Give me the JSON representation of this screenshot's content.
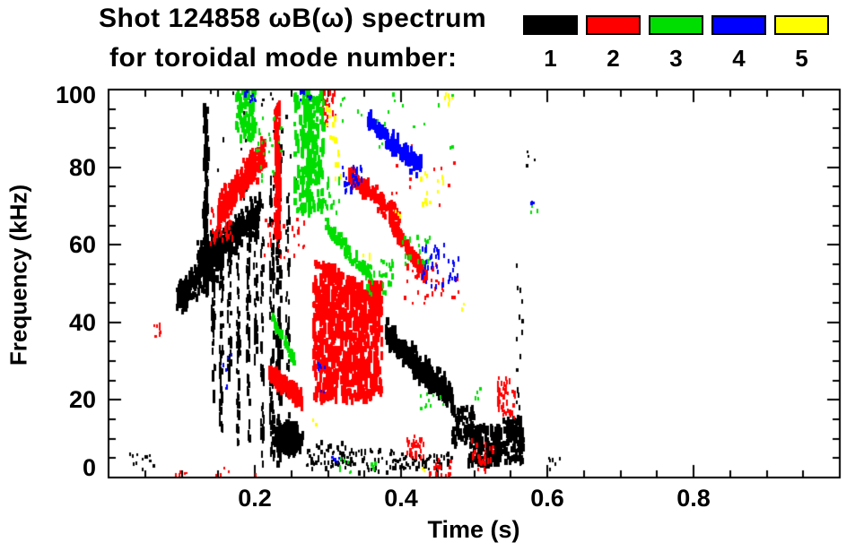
{
  "header": {
    "title_line1": "Shot 124858 ωB(ω) spectrum",
    "title_line2": "for toroidal mode number:"
  },
  "legend": {
    "items": [
      {
        "label": "1",
        "color": "#000000"
      },
      {
        "label": "2",
        "color": "#ff0000"
      },
      {
        "label": "3",
        "color": "#00dd00"
      },
      {
        "label": "4",
        "color": "#0000ff"
      },
      {
        "label": "5",
        "color": "#ffff00"
      }
    ]
  },
  "chart_data": {
    "type": "scatter",
    "title": "Shot 124858 ωB(ω) spectrum for toroidal mode number: 1-5",
    "xlabel": "Time (s)",
    "ylabel": "Frequency (kHz)",
    "xlim": [
      0,
      1.0
    ],
    "ylim": [
      0,
      100
    ],
    "grid": false,
    "legend_position": "top-right",
    "xticks": {
      "major": [
        0.2,
        0.4,
        0.6,
        0.8
      ],
      "labels": [
        "0.2",
        "0.4",
        "0.6",
        "0.8"
      ],
      "minor_step": 0.05
    },
    "yticks": {
      "major": [
        0,
        20,
        40,
        60,
        80,
        100
      ],
      "labels": [
        "0",
        "20",
        "40",
        "60",
        "80",
        "100"
      ],
      "minor_step": 5
    },
    "modes": [
      {
        "n": 1,
        "color": "#000000"
      },
      {
        "n": 2,
        "color": "#ff0000"
      },
      {
        "n": 3,
        "color": "#00dd00"
      },
      {
        "n": 4,
        "color": "#0000ff"
      },
      {
        "n": 5,
        "color": "#ffff00"
      }
    ],
    "clusters": [
      {
        "m": 1,
        "p": "box",
        "t": [
          0.028,
          0.062
        ],
        "f": [
          2,
          6
        ],
        "n": 12,
        "w": 2,
        "h": 3,
        "hv": 2
      },
      {
        "m": 1,
        "p": "band",
        "t": [
          0.092,
          0.155
        ],
        "f": [
          46,
          57
        ],
        "fs": 5,
        "n": 220,
        "w": 3,
        "h": 5,
        "hv": 5
      },
      {
        "m": 1,
        "p": "band",
        "t": [
          0.12,
          0.205
        ],
        "f": [
          56,
          68
        ],
        "fs": 5,
        "n": 330,
        "w": 3,
        "h": 5,
        "hv": 5
      },
      {
        "m": 1,
        "p": "vstreak",
        "t": [
          0.131,
          0.003
        ],
        "f": [
          48,
          97
        ],
        "n": 90,
        "w": 3,
        "h": 6,
        "hv": 6
      },
      {
        "m": 1,
        "p": "vstreak",
        "t": [
          0.142,
          0.002
        ],
        "f": [
          20,
          55
        ],
        "n": 45,
        "w": 2,
        "h": 5,
        "hv": 5
      },
      {
        "m": 1,
        "p": "vstreak",
        "t": [
          0.153,
          0.002
        ],
        "f": [
          12,
          62
        ],
        "n": 60,
        "w": 2,
        "h": 5,
        "hv": 5
      },
      {
        "m": 1,
        "p": "vstreak",
        "t": [
          0.164,
          0.002
        ],
        "f": [
          25,
          62
        ],
        "n": 45,
        "w": 2,
        "h": 5,
        "hv": 5
      },
      {
        "m": 1,
        "p": "vstreak",
        "t": [
          0.176,
          0.002
        ],
        "f": [
          8,
          66
        ],
        "n": 60,
        "w": 2,
        "h": 5,
        "hv": 5
      },
      {
        "m": 1,
        "p": "vstreak",
        "t": [
          0.19,
          0.002
        ],
        "f": [
          10,
          68
        ],
        "n": 55,
        "w": 2,
        "h": 5,
        "hv": 5
      },
      {
        "m": 1,
        "p": "vstreak",
        "t": [
          0.2,
          0.002
        ],
        "f": [
          28,
          66
        ],
        "n": 40,
        "w": 2,
        "h": 5,
        "hv": 5
      },
      {
        "m": 1,
        "p": "vstreak",
        "t": [
          0.209,
          0.002
        ],
        "f": [
          3,
          70
        ],
        "n": 50,
        "w": 2,
        "h": 5,
        "hv": 5
      },
      {
        "m": 1,
        "p": "box",
        "t": [
          0.13,
          0.26
        ],
        "f": [
          72,
          100
        ],
        "n": 30,
        "w": 2,
        "h": 3,
        "hv": 3
      },
      {
        "m": 1,
        "p": "vstreak",
        "t": [
          0.222,
          0.003
        ],
        "f": [
          4,
          80
        ],
        "n": 80,
        "w": 2,
        "h": 5,
        "hv": 6
      },
      {
        "m": 1,
        "p": "vstreak",
        "t": [
          0.231,
          0.003
        ],
        "f": [
          3,
          88
        ],
        "n": 90,
        "w": 3,
        "h": 6,
        "hv": 6
      },
      {
        "m": 1,
        "p": "vstreak",
        "t": [
          0.244,
          0.002
        ],
        "f": [
          5,
          72
        ],
        "n": 50,
        "w": 2,
        "h": 5,
        "hv": 5
      },
      {
        "m": 1,
        "p": "blob",
        "t": [
          0.243,
          0.018
        ],
        "f": [
          10,
          4
        ],
        "n": 380,
        "w": 3,
        "h": 5,
        "hv": 5
      },
      {
        "m": 1,
        "p": "box",
        "t": [
          0.27,
          0.325
        ],
        "f": [
          2,
          9
        ],
        "n": 55,
        "w": 2,
        "h": 3,
        "hv": 3
      },
      {
        "m": 1,
        "p": "box",
        "t": [
          0.325,
          0.39
        ],
        "f": [
          1,
          7
        ],
        "n": 45,
        "w": 2,
        "h": 3,
        "hv": 3
      },
      {
        "m": 1,
        "p": "band",
        "t": [
          0.378,
          0.468
        ],
        "f": [
          37,
          20
        ],
        "fs": 4,
        "n": 380,
        "w": 3,
        "h": 5,
        "hv": 5
      },
      {
        "m": 1,
        "p": "box",
        "t": [
          0.388,
          0.468
        ],
        "f": [
          2,
          6
        ],
        "n": 65,
        "w": 2,
        "h": 3,
        "hv": 3
      },
      {
        "m": 1,
        "p": "box",
        "t": [
          0.468,
          0.497
        ],
        "f": [
          8,
          18
        ],
        "n": 80,
        "w": 3,
        "h": 4,
        "hv": 4
      },
      {
        "m": 1,
        "p": "box",
        "t": [
          0.49,
          0.535
        ],
        "f": [
          3,
          13
        ],
        "n": 170,
        "w": 3,
        "h": 5,
        "hv": 4
      },
      {
        "m": 1,
        "p": "box",
        "t": [
          0.538,
          0.565
        ],
        "f": [
          4,
          15
        ],
        "n": 110,
        "w": 3,
        "h": 5,
        "hv": 4
      },
      {
        "m": 1,
        "p": "vstreak",
        "t": [
          0.561,
          0.004
        ],
        "f": [
          3,
          62
        ],
        "n": 20,
        "w": 2,
        "h": 4,
        "hv": 3
      },
      {
        "m": 1,
        "p": "box",
        "t": [
          0.6,
          0.617
        ],
        "f": [
          2,
          5
        ],
        "n": 6,
        "w": 2,
        "h": 3,
        "hv": 2
      },
      {
        "m": 1,
        "p": "box",
        "t": [
          0.57,
          0.585
        ],
        "f": [
          80,
          86
        ],
        "n": 4,
        "w": 2,
        "h": 3,
        "hv": 2
      },
      {
        "m": 2,
        "p": "band",
        "t": [
          0.148,
          0.212
        ],
        "f": [
          68,
          84
        ],
        "fs": 5,
        "n": 280,
        "w": 3,
        "h": 5,
        "hv": 5
      },
      {
        "m": 2,
        "p": "box",
        "t": [
          0.138,
          0.168
        ],
        "f": [
          60,
          70
        ],
        "n": 40,
        "w": 2,
        "h": 4,
        "hv": 3
      },
      {
        "m": 2,
        "p": "vstreak",
        "t": [
          0.229,
          0.003
        ],
        "f": [
          62,
          96
        ],
        "n": 110,
        "w": 3,
        "h": 6,
        "hv": 6
      },
      {
        "m": 2,
        "p": "band",
        "t": [
          0.218,
          0.263
        ],
        "f": [
          27,
          20
        ],
        "fs": 2.5,
        "n": 220,
        "w": 3,
        "h": 5,
        "hv": 4
      },
      {
        "m": 2,
        "p": "box",
        "t": [
          0.278,
          0.372
        ],
        "f": [
          20,
          51
        ],
        "n": 650,
        "w": 3,
        "h": 6,
        "hv": 7
      },
      {
        "m": 2,
        "p": "band",
        "t": [
          0.28,
          0.372
        ],
        "f": [
          55,
          44
        ],
        "fs": 3,
        "n": 130,
        "w": 3,
        "h": 5,
        "hv": 4
      },
      {
        "m": 2,
        "p": "band",
        "t": [
          0.327,
          0.397
        ],
        "f": [
          78,
          67
        ],
        "fs": 2.5,
        "n": 160,
        "w": 3,
        "h": 5,
        "hv": 4
      },
      {
        "m": 2,
        "p": "band",
        "t": [
          0.383,
          0.433
        ],
        "f": [
          66,
          52
        ],
        "fs": 2.5,
        "n": 170,
        "w": 3,
        "h": 5,
        "hv": 4
      },
      {
        "m": 2,
        "p": "box",
        "t": [
          0.288,
          0.316
        ],
        "f": [
          90,
          100
        ],
        "n": 28,
        "w": 2,
        "h": 4,
        "hv": 3
      },
      {
        "m": 2,
        "p": "box",
        "t": [
          0.4,
          0.477
        ],
        "f": [
          44,
          56
        ],
        "n": 30,
        "w": 2,
        "h": 3,
        "hv": 3
      },
      {
        "m": 2,
        "p": "box",
        "t": [
          0.405,
          0.432
        ],
        "f": [
          5,
          11
        ],
        "n": 30,
        "w": 2,
        "h": 4,
        "hv": 3
      },
      {
        "m": 2,
        "p": "box",
        "t": [
          0.435,
          0.467
        ],
        "f": [
          0,
          5
        ],
        "n": 20,
        "w": 2,
        "h": 3,
        "hv": 3
      },
      {
        "m": 2,
        "p": "box",
        "t": [
          0.495,
          0.527
        ],
        "f": [
          1,
          10
        ],
        "n": 26,
        "w": 2,
        "h": 4,
        "hv": 3
      },
      {
        "m": 2,
        "p": "box",
        "t": [
          0.53,
          0.555
        ],
        "f": [
          15,
          26
        ],
        "n": 40,
        "w": 2,
        "h": 4,
        "hv": 3
      },
      {
        "m": 2,
        "p": "box",
        "t": [
          0.36,
          0.5
        ],
        "f": [
          70,
          86
        ],
        "n": 16,
        "w": 2,
        "h": 3,
        "hv": 2
      },
      {
        "m": 2,
        "p": "box",
        "t": [
          0.06,
          0.07
        ],
        "f": [
          36,
          41
        ],
        "n": 8,
        "w": 2,
        "h": 3,
        "hv": 3
      },
      {
        "m": 2,
        "p": "box",
        "t": [
          0.09,
          0.21
        ],
        "f": [
          0,
          3
        ],
        "n": 10,
        "w": 2,
        "h": 2,
        "hv": 2
      },
      {
        "m": 2,
        "p": "box",
        "t": [
          0.212,
          0.268
        ],
        "f": [
          56,
          67
        ],
        "n": 25,
        "w": 2,
        "h": 3,
        "hv": 3
      },
      {
        "m": 3,
        "p": "box",
        "t": [
          0.173,
          0.198
        ],
        "f": [
          87,
          100
        ],
        "n": 90,
        "w": 3,
        "h": 5,
        "hv": 5
      },
      {
        "m": 3,
        "p": "box",
        "t": [
          0.198,
          0.237
        ],
        "f": [
          76,
          93
        ],
        "n": 25,
        "w": 2,
        "h": 3,
        "hv": 3
      },
      {
        "m": 3,
        "p": "box",
        "t": [
          0.252,
          0.293
        ],
        "f": [
          68,
          99
        ],
        "n": 200,
        "w": 3,
        "h": 5,
        "hv": 6
      },
      {
        "m": 3,
        "p": "vstreak",
        "t": [
          0.272,
          0.003
        ],
        "f": [
          70,
          100
        ],
        "n": 60,
        "w": 3,
        "h": 6,
        "hv": 5
      },
      {
        "m": 3,
        "p": "band",
        "t": [
          0.222,
          0.252
        ],
        "f": [
          41,
          30
        ],
        "fs": 1.5,
        "n": 55,
        "w": 3,
        "h": 4,
        "hv": 3
      },
      {
        "m": 3,
        "p": "band",
        "t": [
          0.295,
          0.357
        ],
        "f": [
          65,
          52
        ],
        "fs": 2.5,
        "n": 85,
        "w": 3,
        "h": 4,
        "hv": 4
      },
      {
        "m": 3,
        "p": "box",
        "t": [
          0.35,
          0.388
        ],
        "f": [
          47,
          56
        ],
        "n": 32,
        "w": 2,
        "h": 4,
        "hv": 3
      },
      {
        "m": 3,
        "p": "box",
        "t": [
          0.398,
          0.442
        ],
        "f": [
          54,
          62
        ],
        "n": 20,
        "w": 2,
        "h": 4,
        "hv": 3
      },
      {
        "m": 3,
        "p": "box",
        "t": [
          0.3,
          0.47
        ],
        "f": [
          84,
          100
        ],
        "n": 20,
        "w": 2,
        "h": 3,
        "hv": 2
      },
      {
        "m": 3,
        "p": "box",
        "t": [
          0.295,
          0.317
        ],
        "f": [
          68,
          78
        ],
        "n": 15,
        "w": 2,
        "h": 4,
        "hv": 3
      },
      {
        "m": 3,
        "p": "box",
        "t": [
          0.425,
          0.458
        ],
        "f": [
          17,
          23
        ],
        "n": 10,
        "w": 2,
        "h": 3,
        "hv": 2
      },
      {
        "m": 3,
        "p": "box",
        "t": [
          0.315,
          0.332
        ],
        "f": [
          1,
          5
        ],
        "n": 8,
        "w": 2,
        "h": 3,
        "hv": 2
      },
      {
        "m": 3,
        "p": "box",
        "t": [
          0.355,
          0.368
        ],
        "f": [
          0,
          4
        ],
        "n": 5,
        "w": 2,
        "h": 3,
        "hv": 2
      },
      {
        "m": 3,
        "p": "box",
        "t": [
          0.5,
          0.512
        ],
        "f": [
          20,
          23
        ],
        "n": 4,
        "w": 2,
        "h": 3,
        "hv": 2
      },
      {
        "m": 3,
        "p": "box",
        "t": [
          0.575,
          0.585
        ],
        "f": [
          66,
          70
        ],
        "n": 3,
        "w": 2,
        "h": 3,
        "hv": 2
      },
      {
        "m": 4,
        "p": "box",
        "t": [
          0.183,
          0.202
        ],
        "f": [
          97,
          100
        ],
        "n": 12,
        "w": 2,
        "h": 3,
        "hv": 2
      },
      {
        "m": 4,
        "p": "box",
        "t": [
          0.255,
          0.277
        ],
        "f": [
          97,
          100
        ],
        "n": 8,
        "w": 2,
        "h": 3,
        "hv": 2
      },
      {
        "m": 4,
        "p": "band",
        "t": [
          0.352,
          0.425
        ],
        "f": [
          92,
          80
        ],
        "fs": 3,
        "n": 150,
        "w": 3,
        "h": 5,
        "hv": 5
      },
      {
        "m": 4,
        "p": "box",
        "t": [
          0.318,
          0.347
        ],
        "f": [
          73,
          80
        ],
        "n": 28,
        "w": 2,
        "h": 4,
        "hv": 3
      },
      {
        "m": 4,
        "p": "box",
        "t": [
          0.42,
          0.477
        ],
        "f": [
          49,
          60
        ],
        "n": 40,
        "w": 2,
        "h": 4,
        "hv": 3
      },
      {
        "m": 4,
        "p": "box",
        "t": [
          0.155,
          0.168
        ],
        "f": [
          22,
          32
        ],
        "n": 6,
        "w": 2,
        "h": 3,
        "hv": 2
      },
      {
        "m": 4,
        "p": "box",
        "t": [
          0.283,
          0.295
        ],
        "f": [
          22,
          33
        ],
        "n": 7,
        "w": 2,
        "h": 3,
        "hv": 2
      },
      {
        "m": 4,
        "p": "box",
        "t": [
          0.298,
          0.315
        ],
        "f": [
          2,
          6
        ],
        "n": 5,
        "w": 2,
        "h": 3,
        "hv": 2
      },
      {
        "m": 4,
        "p": "box",
        "t": [
          0.575,
          0.583
        ],
        "f": [
          69,
          72
        ],
        "n": 3,
        "w": 2,
        "h": 3,
        "hv": 2
      },
      {
        "m": 5,
        "p": "box",
        "t": [
          0.295,
          0.309
        ],
        "f": [
          86,
          95
        ],
        "n": 9,
        "w": 3,
        "h": 4,
        "hv": 3
      },
      {
        "m": 5,
        "p": "box",
        "t": [
          0.307,
          0.321
        ],
        "f": [
          75,
          86
        ],
        "n": 7,
        "w": 2,
        "h": 4,
        "hv": 3
      },
      {
        "m": 5,
        "p": "box",
        "t": [
          0.415,
          0.457
        ],
        "f": [
          70,
          80
        ],
        "n": 13,
        "w": 2,
        "h": 4,
        "hv": 3
      },
      {
        "m": 5,
        "p": "box",
        "t": [
          0.455,
          0.469
        ],
        "f": [
          96,
          100
        ],
        "n": 6,
        "w": 2,
        "h": 3,
        "hv": 3
      },
      {
        "m": 5,
        "p": "box",
        "t": [
          0.388,
          0.4
        ],
        "f": [
          66,
          69
        ],
        "n": 3,
        "w": 2,
        "h": 3,
        "hv": 2
      },
      {
        "m": 5,
        "p": "box",
        "t": [
          0.345,
          0.357
        ],
        "f": [
          56,
          59
        ],
        "n": 3,
        "w": 2,
        "h": 3,
        "hv": 2
      },
      {
        "m": 5,
        "p": "box",
        "t": [
          0.48,
          0.492
        ],
        "f": [
          43,
          46
        ],
        "n": 2,
        "w": 2,
        "h": 3,
        "hv": 2
      },
      {
        "m": 5,
        "p": "box",
        "t": [
          0.275,
          0.287
        ],
        "f": [
          12,
          15
        ],
        "n": 2,
        "w": 2,
        "h": 3,
        "hv": 2
      },
      {
        "m": 5,
        "p": "box",
        "t": [
          0.42,
          0.432
        ],
        "f": [
          1,
          3
        ],
        "n": 2,
        "w": 2,
        "h": 3,
        "hv": 2
      }
    ]
  }
}
